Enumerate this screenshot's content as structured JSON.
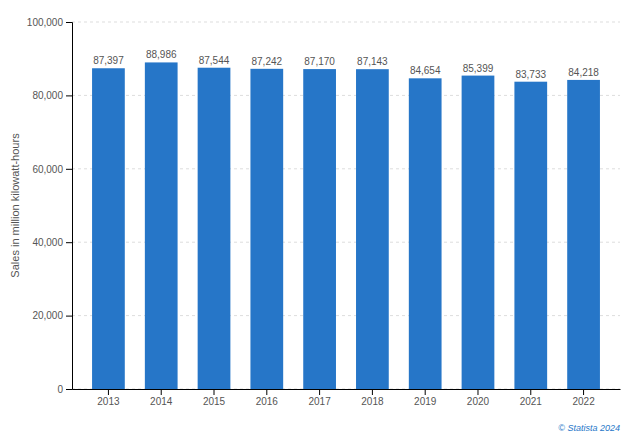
{
  "chart_data": {
    "type": "bar",
    "ylabel": "Sales in million kilowatt-hours",
    "categories": [
      "2013",
      "2014",
      "2015",
      "2016",
      "2017",
      "2018",
      "2019",
      "2020",
      "2021",
      "2022"
    ],
    "values": [
      87397,
      88986,
      87544,
      87242,
      87170,
      87143,
      84654,
      85399,
      83733,
      84218
    ],
    "value_labels": [
      "87,397",
      "88,986",
      "87,544",
      "87,242",
      "87,170",
      "87,143",
      "84,654",
      "85,399",
      "83,733",
      "84,218"
    ],
    "data_labels": true,
    "color": "#2676C8",
    "ylim": [
      0,
      100000
    ],
    "yticks": [
      0,
      {
        "value": 20000,
        "label": "20,000"
      },
      {
        "value": 40000,
        "label": "40,000"
      },
      {
        "value": 60000,
        "label": "60,000"
      },
      {
        "value": 80000,
        "label": "80,000"
      },
      {
        "value": 100000,
        "label": "100,000"
      }
    ],
    "grid": true,
    "annotations": [
      "© Statista 2024"
    ]
  }
}
